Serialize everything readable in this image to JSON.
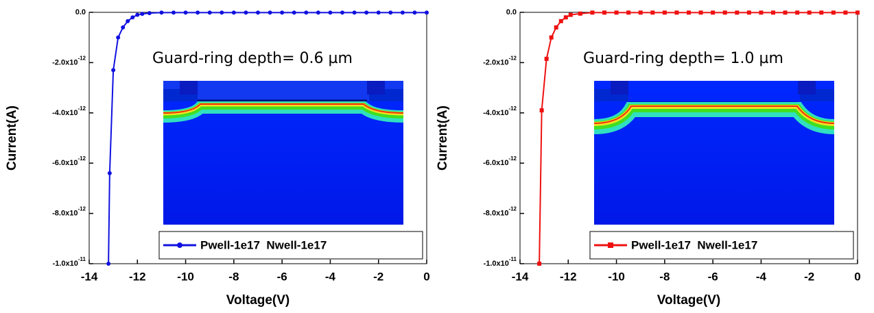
{
  "chart_data": [
    {
      "type": "line",
      "xlabel": "Voltage(V)",
      "ylabel": "Current(A)",
      "annotation": "Guard-ring depth= 0.6 µm",
      "xlim": [
        -14,
        0
      ],
      "ylim": [
        -1e-11,
        0
      ],
      "xticks": [
        -14,
        -12,
        -10,
        -8,
        -6,
        -4,
        -2,
        0
      ],
      "yticks": [
        {
          "value": 0,
          "label": "0.0"
        },
        {
          "value": -2e-12,
          "label": "-2.0x10-12"
        },
        {
          "value": -4e-12,
          "label": "-4.0x10-12"
        },
        {
          "value": -6e-12,
          "label": "-6.0x10-12"
        },
        {
          "value": -8e-12,
          "label": "-8.0x10-12"
        },
        {
          "value": -1e-11,
          "label": "-1.0x10-11"
        }
      ],
      "x": [
        -13.2,
        -13.15,
        -13.0,
        -12.8,
        -12.6,
        -12.4,
        -12.2,
        -12.0,
        -11.8,
        -11.5,
        -11.0,
        -10.5,
        -10,
        -9.5,
        -9,
        -8.5,
        -8,
        -7.5,
        -7,
        -6.5,
        -6,
        -5.5,
        -5,
        -4.5,
        -4,
        -3.5,
        -3,
        -2.5,
        -2,
        -1.5,
        -1,
        -0.5,
        0
      ],
      "series": [
        {
          "name": "Pwell-1e17  Nwell-1e17",
          "color": "#1010e0",
          "marker": "circle",
          "values": [
            -1e-11,
            -6.4e-12,
            -2.3e-12,
            -1e-12,
            -6e-13,
            -3.5e-13,
            -2e-13,
            -1e-13,
            -6e-14,
            -3e-14,
            -1e-14,
            -1e-14,
            -1e-14,
            -1e-14,
            -1e-14,
            -1e-14,
            -1e-14,
            -1e-14,
            -1e-14,
            -1e-14,
            -1e-14,
            -1e-14,
            -1e-14,
            -1e-14,
            -1e-14,
            -1e-14,
            -1e-14,
            -1e-14,
            -1e-14,
            -1e-14,
            -1e-14,
            -1e-14,
            -1e-14
          ]
        }
      ]
    },
    {
      "type": "line",
      "xlabel": "Voltage(V)",
      "ylabel": "Current(A)",
      "annotation": "Guard-ring depth= 1.0 µm",
      "xlim": [
        -14,
        0
      ],
      "ylim": [
        -1e-11,
        0
      ],
      "xticks": [
        -14,
        -12,
        -10,
        -8,
        -6,
        -4,
        -2,
        0
      ],
      "yticks": [
        {
          "value": 0,
          "label": "0.0"
        },
        {
          "value": -2e-12,
          "label": "-2.0x10-12"
        },
        {
          "value": -4e-12,
          "label": "-4.0x10-12"
        },
        {
          "value": -6e-12,
          "label": "-6.0x10-12"
        },
        {
          "value": -8e-12,
          "label": "-8.0x10-12"
        },
        {
          "value": -1e-11,
          "label": "-1.0x10-11"
        }
      ],
      "x": [
        -13.2,
        -13.1,
        -12.9,
        -12.7,
        -12.5,
        -12.3,
        -12.1,
        -11.9,
        -11.5,
        -11.0,
        -10.5,
        -10,
        -9.5,
        -9,
        -8.5,
        -8,
        -7.5,
        -7,
        -6.5,
        -6,
        -5.5,
        -5,
        -4.5,
        -4,
        -3.5,
        -3,
        -2.5,
        -2,
        -1.5,
        -1,
        -0.5,
        0
      ],
      "series": [
        {
          "name": "Pwell-1e17  Nwell-1e17",
          "color": "#ee1010",
          "marker": "square",
          "values": [
            -1e-11,
            -3.9e-12,
            -1.85e-12,
            -1e-12,
            -6e-13,
            -3.5e-13,
            -2e-13,
            -1e-13,
            -5e-14,
            -1e-14,
            -1e-14,
            -1e-14,
            -1e-14,
            -1e-14,
            -1e-14,
            -1e-14,
            -1e-14,
            -1e-14,
            -1e-14,
            -1e-14,
            -1e-14,
            -1e-14,
            -1e-14,
            -1e-14,
            -1e-14,
            -1e-14,
            -1e-14,
            -1e-14,
            -1e-14,
            -1e-14,
            -1e-14,
            -1e-14
          ]
        }
      ]
    }
  ]
}
